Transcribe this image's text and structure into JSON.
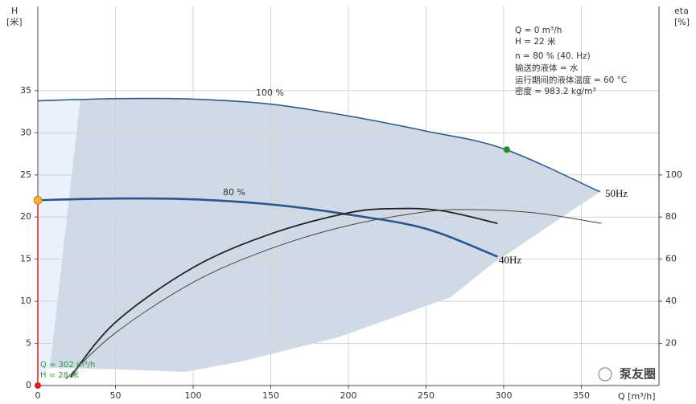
{
  "chart_data": {
    "type": "line",
    "x_label": "Q [m³/h]",
    "y_label": "H",
    "y_unit": "[米]",
    "y2_label": "eta",
    "y2_unit": "[%]",
    "xlim": [
      0,
      400
    ],
    "xticks": [
      0,
      50,
      100,
      150,
      200,
      250,
      300,
      350
    ],
    "ylim": [
      0,
      45
    ],
    "yticks": [
      0,
      5,
      10,
      15,
      20,
      25,
      30,
      35
    ],
    "y2lim": [
      0,
      180
    ],
    "y2ticks": [
      20,
      40,
      60,
      80,
      100
    ],
    "grid": true,
    "series": [
      {
        "name": "100 %",
        "color": "#2f5b8c",
        "width": 1.6,
        "x": [
          0,
          50,
          100,
          150,
          200,
          250,
          300,
          362
        ],
        "values": [
          33.8,
          34.05,
          34.0,
          33.4,
          32.0,
          30.2,
          28.1,
          23
        ]
      },
      {
        "name": "80 %",
        "color": "#2a5590",
        "width": 2.6,
        "x": [
          0,
          50,
          100,
          150,
          200,
          250,
          296
        ],
        "values": [
          22,
          22.2,
          22.1,
          21.5,
          20.3,
          18.6,
          15.3
        ]
      },
      {
        "axis": "y2",
        "color": "#222222",
        "width": 1.8,
        "x": [
          21,
          50,
          100,
          150,
          200,
          230,
          260,
          296
        ],
        "values": [
          4,
          30,
          56,
          72,
          82,
          84,
          83,
          77
        ]
      },
      {
        "axis": "y2",
        "color": "#444444",
        "width": 1,
        "x": [
          18,
          50,
          100,
          150,
          200,
          250,
          280,
          320,
          363
        ],
        "values": [
          3,
          25,
          49,
          65,
          76,
          82.5,
          83.5,
          82,
          77
        ]
      }
    ],
    "curve_labels": [
      "50Hz",
      "40Hz"
    ],
    "points": [
      {
        "x": 302,
        "y": 28,
        "color": "#1f8f2a"
      },
      {
        "x": 0,
        "y": 22,
        "color": "#f2b233"
      },
      {
        "x": 0,
        "y": 0,
        "color": "#d42020"
      }
    ],
    "operating_label": [
      "Q = 302 m³/h",
      "H = 28 米"
    ],
    "info": [
      "Q = 0    m³/h",
      "H = 22 米",
      "n = 80 % (40. Hz)",
      "输送的液体 = 水",
      "运行期间的液体温度 = 60 °C",
      "密度 = 983.2 kg/m³"
    ],
    "watermark": "泵友圈"
  }
}
